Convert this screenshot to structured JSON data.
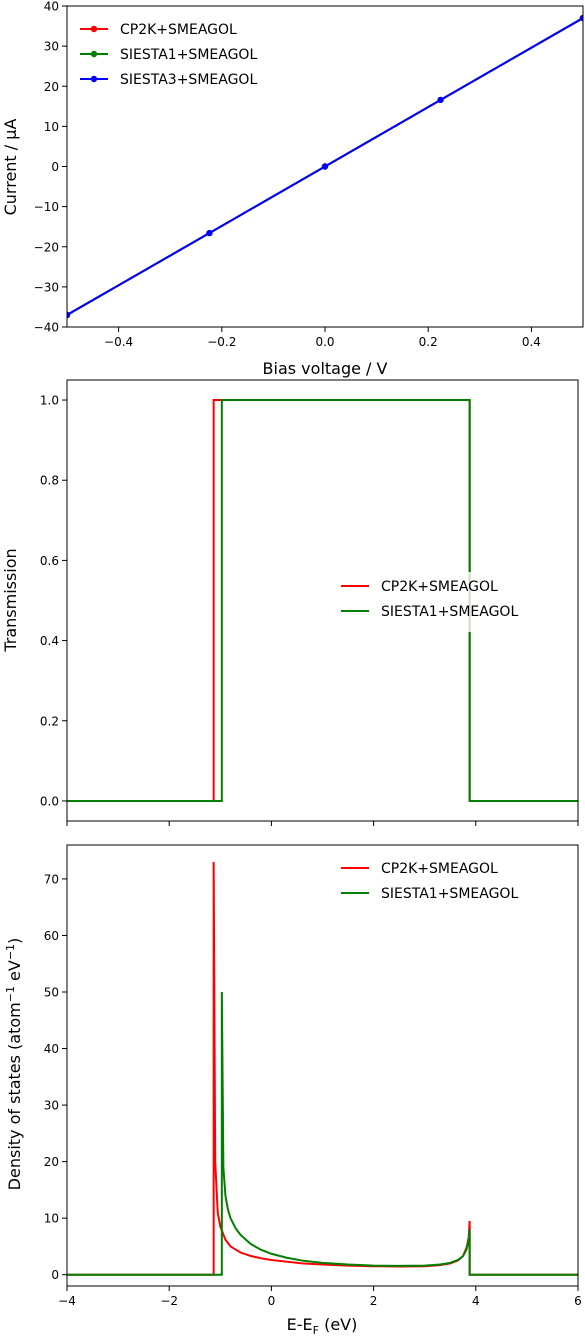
{
  "chart_data": [
    {
      "type": "line",
      "xlabel": "Bias voltage / V",
      "ylabel": "Current / μA",
      "xlim": [
        -0.5,
        0.5
      ],
      "ylim": [
        -40,
        40
      ],
      "xticks": [
        -0.4,
        -0.2,
        0.0,
        0.2,
        0.4
      ],
      "xtick_labels": [
        "−0.4",
        "−0.2",
        "0.0",
        "0.2",
        "0.4"
      ],
      "yticks": [
        -40,
        -30,
        -20,
        -10,
        0,
        10,
        20,
        30,
        40
      ],
      "ytick_labels": [
        "−40",
        "−30",
        "−20",
        "−10",
        "0",
        "10",
        "20",
        "30",
        "40"
      ],
      "grid": false,
      "legend_position": "top-left",
      "series": [
        {
          "name": "CP2K+SMEAGOL",
          "color": "#ff0000",
          "x": [
            -0.5,
            0.0,
            0.5
          ],
          "y": [
            -37,
            0,
            37
          ]
        },
        {
          "name": "SIESTA1+SMEAGOL",
          "color": "#008000",
          "x": [
            -0.5,
            0.5
          ],
          "y": [
            -37,
            37
          ]
        },
        {
          "name": "SIESTA3+SMEAGOL",
          "color": "#0000ff",
          "x": [
            -0.5,
            -0.224,
            0.0,
            0.224,
            0.5
          ],
          "y": [
            -37,
            -16.6,
            0,
            16.6,
            37
          ]
        }
      ]
    },
    {
      "type": "line",
      "xlabel": "",
      "ylabel": "Transmission",
      "xlim": [
        -4,
        6
      ],
      "ylim": [
        -0.05,
        1.05
      ],
      "yticks": [
        0.0,
        0.2,
        0.4,
        0.6,
        0.8,
        1.0
      ],
      "ytick_labels": [
        "0.0",
        "0.2",
        "0.4",
        "0.6",
        "0.8",
        "1.0"
      ],
      "xticks": [
        -4,
        -2,
        0,
        2,
        4,
        6
      ],
      "grid": false,
      "legend_position": "center-right",
      "series": [
        {
          "name": "CP2K+SMEAGOL",
          "color": "#ff0000",
          "x": [
            -4,
            -1.13,
            -1.13,
            3.88,
            3.88,
            6
          ],
          "y": [
            0,
            0,
            1,
            1,
            0,
            0
          ]
        },
        {
          "name": "SIESTA1+SMEAGOL",
          "color": "#008000",
          "x": [
            -4,
            -0.97,
            -0.97,
            3.88,
            3.88,
            6
          ],
          "y": [
            0,
            0,
            1,
            1,
            0,
            0
          ]
        }
      ]
    },
    {
      "type": "line",
      "xlabel": "E-E",
      "xlabel_sub": "F",
      "xlabel_suffix": " (eV)",
      "ylabel": "Density of states (atom",
      "ylabel_sup1": "−1",
      "ylabel_mid": " eV",
      "ylabel_sup2": "−1",
      "ylabel_end": ")",
      "xlim": [
        -4,
        6
      ],
      "ylim": [
        -2,
        76
      ],
      "xticks": [
        -4,
        -2,
        0,
        2,
        4,
        6
      ],
      "xtick_labels": [
        "−4",
        "−2",
        "0",
        "2",
        "4",
        "6"
      ],
      "yticks": [
        0,
        10,
        20,
        30,
        40,
        50,
        60,
        70
      ],
      "ytick_labels": [
        "0",
        "10",
        "20",
        "30",
        "40",
        "50",
        "60",
        "70"
      ],
      "grid": false,
      "legend_position": "top-right",
      "series": [
        {
          "name": "CP2K+SMEAGOL",
          "color": "#ff0000",
          "x": [
            -4,
            -1.13,
            -1.13,
            -1.1,
            -1.05,
            -1.0,
            -0.9,
            -0.8,
            -0.6,
            -0.4,
            -0.2,
            0.0,
            0.3,
            0.6,
            1.0,
            1.5,
            2.0,
            2.5,
            3.0,
            3.3,
            3.5,
            3.65,
            3.75,
            3.82,
            3.86,
            3.88,
            3.88,
            6
          ],
          "y": [
            0,
            0,
            73,
            20,
            11,
            8.5,
            6.2,
            5.0,
            3.9,
            3.3,
            2.9,
            2.6,
            2.3,
            2.0,
            1.8,
            1.6,
            1.5,
            1.45,
            1.5,
            1.7,
            2.0,
            2.5,
            3.3,
            4.8,
            6.5,
            9.5,
            0,
            0
          ]
        },
        {
          "name": "SIESTA1+SMEAGOL",
          "color": "#008000",
          "x": [
            -4,
            -0.97,
            -0.97,
            -0.94,
            -0.9,
            -0.85,
            -0.8,
            -0.7,
            -0.6,
            -0.4,
            -0.2,
            0.0,
            0.3,
            0.6,
            1.0,
            1.5,
            2.0,
            2.5,
            3.0,
            3.3,
            3.5,
            3.65,
            3.75,
            3.82,
            3.86,
            3.88,
            3.88,
            6
          ],
          "y": [
            0,
            0,
            50,
            19,
            14,
            11.5,
            10,
            8.2,
            7.0,
            5.4,
            4.4,
            3.7,
            3.0,
            2.5,
            2.1,
            1.8,
            1.6,
            1.55,
            1.6,
            1.8,
            2.1,
            2.6,
            3.3,
            4.5,
            6.0,
            8.0,
            0,
            0
          ]
        }
      ]
    }
  ]
}
